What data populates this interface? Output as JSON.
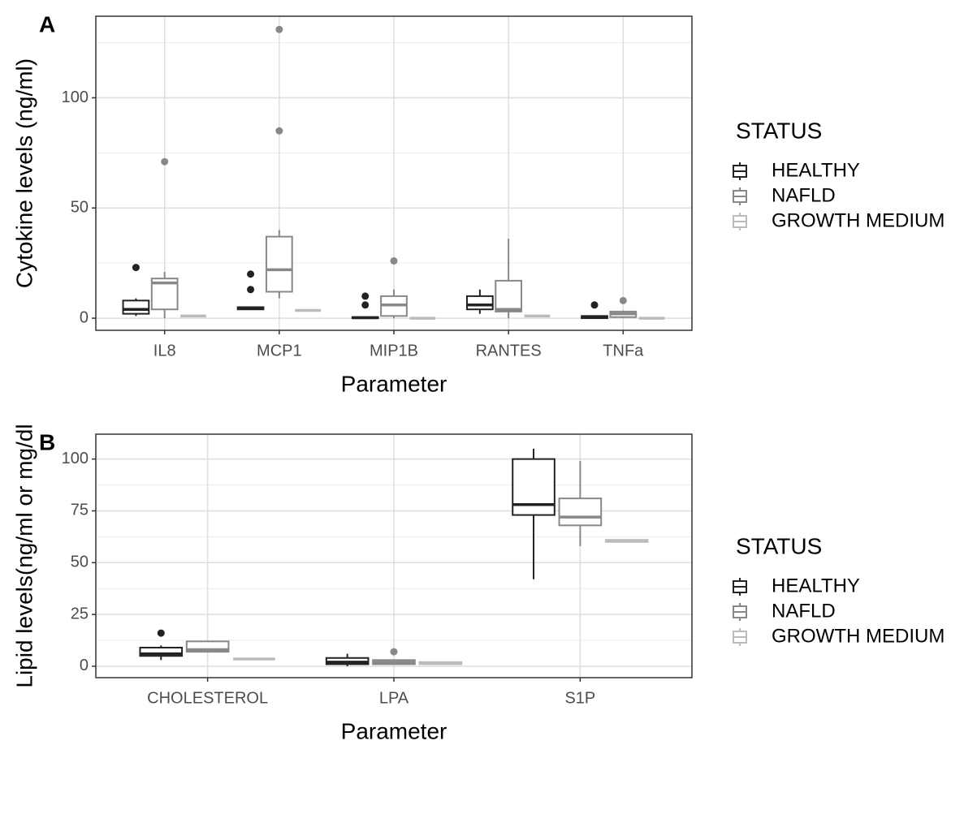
{
  "chart_data": [
    {
      "type": "box",
      "tag": "A",
      "y_label": "Cytokine levels (ng/ml)",
      "x_label": "Parameter",
      "legend_title": "STATUS",
      "legend": "right",
      "grid": true,
      "categories": [
        "IL8",
        "MCP1",
        "MIP1B",
        "RANTES",
        "TNFa"
      ],
      "ylim": [
        -5.5,
        137
      ],
      "yticks": [
        0,
        50,
        100
      ],
      "minor_yticks": [
        25,
        75,
        125
      ],
      "series": [
        {
          "name": "HEALTHY",
          "color": "#222222",
          "min": [
            1,
            4,
            0,
            2,
            0
          ],
          "q1": [
            2,
            4,
            0,
            4,
            0
          ],
          "median": [
            4,
            4.5,
            0.2,
            6,
            0.5
          ],
          "q3": [
            8,
            5,
            0.5,
            10,
            1
          ],
          "max": [
            9,
            5,
            0.5,
            13,
            1
          ],
          "outliers": [
            [
              23
            ],
            [
              13,
              20
            ],
            [
              6,
              10
            ],
            [],
            [
              6
            ]
          ]
        },
        {
          "name": "NAFLD",
          "color": "#888888",
          "min": [
            0,
            9,
            0,
            0,
            0
          ],
          "q1": [
            4,
            12,
            1,
            3,
            0.5
          ],
          "median": [
            16,
            22,
            6,
            4,
            2
          ],
          "q3": [
            18,
            37,
            10,
            17,
            3
          ],
          "max": [
            21,
            40,
            13,
            36,
            3.5
          ],
          "outliers": [
            [
              71
            ],
            [
              85,
              131
            ],
            [
              26
            ],
            [],
            [
              8
            ]
          ]
        },
        {
          "name": "GROWTH MEDIUM",
          "color": "#bbbbbb",
          "min": [
            1,
            3.5,
            0,
            1,
            0
          ],
          "q1": [
            1,
            3.5,
            0,
            1,
            0
          ],
          "median": [
            1,
            3.5,
            0,
            1,
            0
          ],
          "q3": [
            1,
            3.5,
            0,
            1,
            0
          ],
          "max": [
            1,
            3.5,
            0,
            1,
            0
          ],
          "outliers": [
            [],
            [],
            [],
            [],
            []
          ]
        }
      ]
    },
    {
      "type": "box",
      "tag": "B",
      "y_label": "Lipid levels(ng/ml or mg/dl",
      "x_label": "Parameter",
      "legend_title": "STATUS",
      "legend": "right",
      "grid": true,
      "categories": [
        "CHOLESTEROL",
        "LPA",
        "S1P"
      ],
      "ylim": [
        -5.5,
        112
      ],
      "yticks": [
        0,
        25,
        50,
        75,
        100
      ],
      "minor_yticks": [
        12.5,
        37.5,
        62.5,
        87.5
      ],
      "series": [
        {
          "name": "HEALTHY",
          "color": "#222222",
          "min": [
            3,
            0,
            42
          ],
          "q1": [
            5,
            1,
            73
          ],
          "median": [
            6,
            2,
            78
          ],
          "q3": [
            9,
            4,
            100
          ],
          "max": [
            10,
            6,
            105
          ],
          "outliers": [
            [
              16
            ],
            [],
            []
          ]
        },
        {
          "name": "NAFLD",
          "color": "#888888",
          "min": [
            7,
            1,
            58
          ],
          "q1": [
            7,
            1,
            68
          ],
          "median": [
            8,
            2,
            72
          ],
          "q3": [
            12,
            3,
            81
          ],
          "max": [
            12,
            3,
            99
          ],
          "outliers": [
            [],
            [
              7
            ],
            []
          ]
        },
        {
          "name": "GROWTH MEDIUM",
          "color": "#bbbbbb",
          "min": [
            3.5,
            1,
            60
          ],
          "q1": [
            3.5,
            1,
            60
          ],
          "median": [
            3.5,
            1.5,
            60.5
          ],
          "q3": [
            3.5,
            2,
            61
          ],
          "max": [
            3.5,
            2,
            61
          ],
          "outliers": [
            [],
            [],
            []
          ]
        }
      ]
    }
  ]
}
